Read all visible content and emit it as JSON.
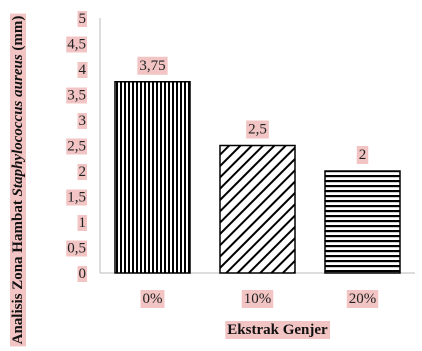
{
  "chart_data": {
    "type": "bar",
    "categories": [
      "0%",
      "10%",
      "20%"
    ],
    "values": [
      3.75,
      2.5,
      2
    ],
    "value_labels": [
      "3,75",
      "2,5",
      "2"
    ],
    "bar_patterns": [
      "vertical-lines",
      "diagonal-lines",
      "horizontal-lines"
    ],
    "xlabel": "Ekstrak Genjer",
    "ylabel_parts": [
      {
        "text": "Analisis Zona Hambat ",
        "style": "normal"
      },
      {
        "text": "Staphylococcus aureus",
        "style": "italic"
      },
      {
        "text": " (mm)",
        "style": "normal"
      }
    ],
    "ylim": [
      0,
      5
    ],
    "yticks": [
      0,
      0.5,
      1,
      1.5,
      2,
      2.5,
      3,
      3.5,
      4,
      4.5,
      5
    ],
    "ytick_labels": [
      "0",
      "0,5",
      "1",
      "1,5",
      "2",
      "2,5",
      "3",
      "3,5",
      "4",
      "4,5",
      "5"
    ],
    "grid": false,
    "legend": "none",
    "colors": {
      "bar_stroke": "#000000",
      "label_highlight": "#f2c4c4"
    }
  }
}
